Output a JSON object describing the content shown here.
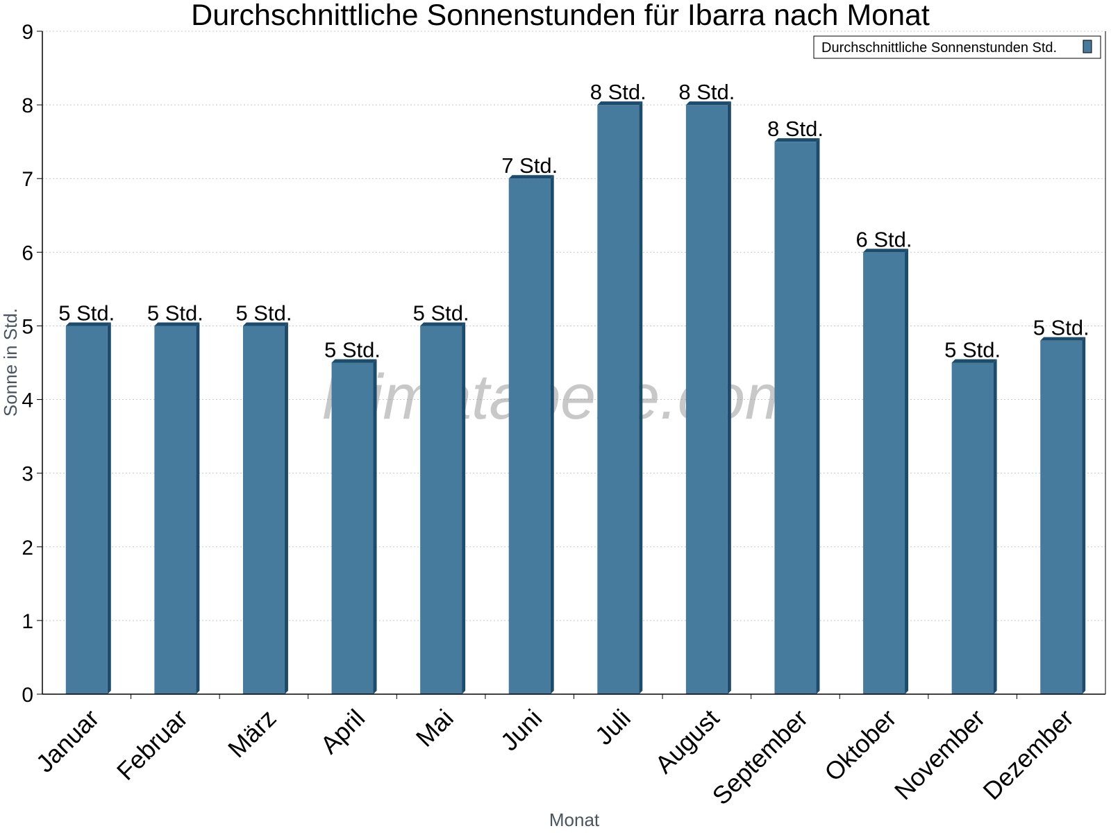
{
  "chart_data": {
    "type": "bar",
    "title": "Durchschnittliche Sonnenstunden für Ibarra nach Monat",
    "xlabel": "Monat",
    "ylabel": "Sonne in Std.",
    "ylim": [
      0,
      9
    ],
    "yticks": [
      "0",
      "1",
      "2",
      "3",
      "4",
      "5",
      "6",
      "7",
      "8",
      "9"
    ],
    "categories": [
      "Januar",
      "Februar",
      "März",
      "April",
      "Mai",
      "Juni",
      "Juli",
      "August",
      "September",
      "Oktober",
      "November",
      "Dezember"
    ],
    "series": [
      {
        "name": "Durchschnittliche Sonnenstunden Std.",
        "values": [
          5.0,
          5.0,
          5.0,
          4.5,
          5.0,
          7.0,
          8.0,
          8.0,
          7.5,
          6.0,
          4.5,
          4.8
        ],
        "labels": [
          "5 Std.",
          "5 Std.",
          "5 Std.",
          "5 Std.",
          "5 Std.",
          "7 Std.",
          "8 Std.",
          "8 Std.",
          "8 Std.",
          "6 Std.",
          "5 Std.",
          "5 Std."
        ]
      }
    ],
    "grid": true,
    "legend_position": "top-right",
    "colors": {
      "bar": "#467b9d",
      "bar_side": "#1b4c6d",
      "grid": "#c8c8c8",
      "axis": "#000000"
    }
  },
  "watermark": "klimatabelle.com"
}
